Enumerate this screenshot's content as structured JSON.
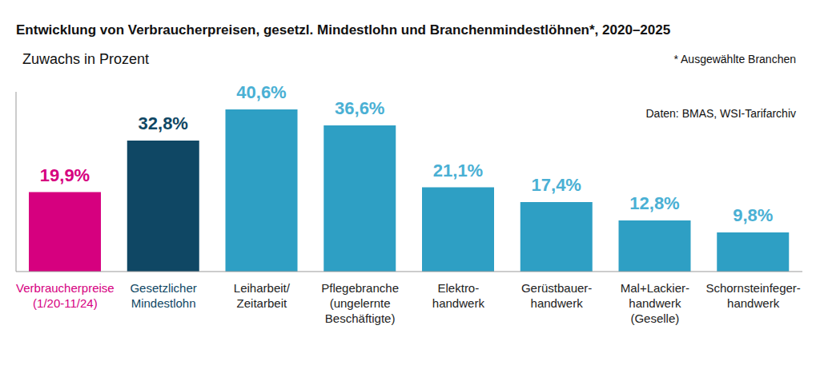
{
  "chart_data": {
    "type": "bar",
    "title": "Entwicklung von Verbraucherpreisen, gesetzl. Mindestlohn und Branchenmindestlöhnen*, 2020–2025",
    "subtitle": "Zuwachs in Prozent",
    "annotations": [
      "* Ausgewählte Branchen",
      "Daten: BMAS, WSI-Tarifarchiv"
    ],
    "categories": [
      "Verbraucherpreise\n(1/20-11/24)",
      "Gesetzlicher\nMindestlohn",
      "Leiharbeit/\nZeitarbeit",
      "Pflegebranche\n(ungelernte\nBeschäftigte)",
      "Elektro-\nhandwerk",
      "Gerüstbauer-\nhandwerk",
      "Mal+Lackier-\nhandwerk\n(Geselle)",
      "Schornsteinfeger-\nhandwerk"
    ],
    "values": [
      19.9,
      32.8,
      40.6,
      36.6,
      21.1,
      17.4,
      12.8,
      9.8
    ],
    "value_labels": [
      "19,9%",
      "32,8%",
      "40,6%",
      "36,6%",
      "21,1%",
      "17,4%",
      "12,8%",
      "9,8%"
    ],
    "colors": [
      "#d6007f",
      "#0f4764",
      "#2e9fc4",
      "#2e9fc4",
      "#2e9fc4",
      "#2e9fc4",
      "#2e9fc4",
      "#2e9fc4"
    ],
    "ylim": [
      0,
      45
    ],
    "data_labels": true,
    "tick_labels": "x",
    "grid": false
  }
}
